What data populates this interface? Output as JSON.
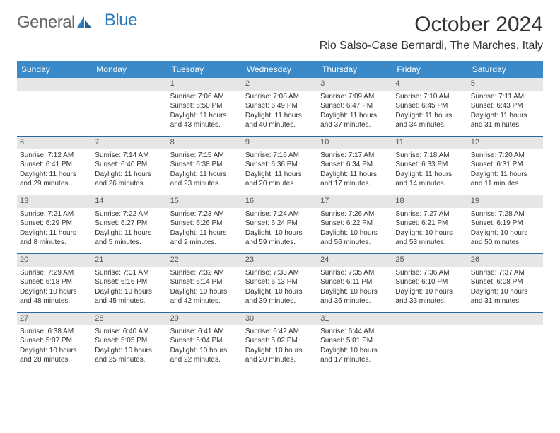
{
  "brand": {
    "part1": "General",
    "part2": "Blue"
  },
  "title": "October 2024",
  "location": "Rio Salso-Case Bernardi, The Marches, Italy",
  "day_names": [
    "Sunday",
    "Monday",
    "Tuesday",
    "Wednesday",
    "Thursday",
    "Friday",
    "Saturday"
  ],
  "colors": {
    "header_bg": "#3a8ac9",
    "header_text": "#ffffff",
    "daynum_bg": "#e6e6e6",
    "rule": "#2a6aa0",
    "brand_blue": "#2a7ac0",
    "text": "#333333"
  },
  "weeks": [
    [
      {
        "n": "",
        "empty": true
      },
      {
        "n": "",
        "empty": true
      },
      {
        "n": "1",
        "sr": "Sunrise: 7:06 AM",
        "ss": "Sunset: 6:50 PM",
        "dl1": "Daylight: 11 hours",
        "dl2": "and 43 minutes."
      },
      {
        "n": "2",
        "sr": "Sunrise: 7:08 AM",
        "ss": "Sunset: 6:49 PM",
        "dl1": "Daylight: 11 hours",
        "dl2": "and 40 minutes."
      },
      {
        "n": "3",
        "sr": "Sunrise: 7:09 AM",
        "ss": "Sunset: 6:47 PM",
        "dl1": "Daylight: 11 hours",
        "dl2": "and 37 minutes."
      },
      {
        "n": "4",
        "sr": "Sunrise: 7:10 AM",
        "ss": "Sunset: 6:45 PM",
        "dl1": "Daylight: 11 hours",
        "dl2": "and 34 minutes."
      },
      {
        "n": "5",
        "sr": "Sunrise: 7:11 AM",
        "ss": "Sunset: 6:43 PM",
        "dl1": "Daylight: 11 hours",
        "dl2": "and 31 minutes."
      }
    ],
    [
      {
        "n": "6",
        "sr": "Sunrise: 7:12 AM",
        "ss": "Sunset: 6:41 PM",
        "dl1": "Daylight: 11 hours",
        "dl2": "and 29 minutes."
      },
      {
        "n": "7",
        "sr": "Sunrise: 7:14 AM",
        "ss": "Sunset: 6:40 PM",
        "dl1": "Daylight: 11 hours",
        "dl2": "and 26 minutes."
      },
      {
        "n": "8",
        "sr": "Sunrise: 7:15 AM",
        "ss": "Sunset: 6:38 PM",
        "dl1": "Daylight: 11 hours",
        "dl2": "and 23 minutes."
      },
      {
        "n": "9",
        "sr": "Sunrise: 7:16 AM",
        "ss": "Sunset: 6:36 PM",
        "dl1": "Daylight: 11 hours",
        "dl2": "and 20 minutes."
      },
      {
        "n": "10",
        "sr": "Sunrise: 7:17 AM",
        "ss": "Sunset: 6:34 PM",
        "dl1": "Daylight: 11 hours",
        "dl2": "and 17 minutes."
      },
      {
        "n": "11",
        "sr": "Sunrise: 7:18 AM",
        "ss": "Sunset: 6:33 PM",
        "dl1": "Daylight: 11 hours",
        "dl2": "and 14 minutes."
      },
      {
        "n": "12",
        "sr": "Sunrise: 7:20 AM",
        "ss": "Sunset: 6:31 PM",
        "dl1": "Daylight: 11 hours",
        "dl2": "and 11 minutes."
      }
    ],
    [
      {
        "n": "13",
        "sr": "Sunrise: 7:21 AM",
        "ss": "Sunset: 6:29 PM",
        "dl1": "Daylight: 11 hours",
        "dl2": "and 8 minutes."
      },
      {
        "n": "14",
        "sr": "Sunrise: 7:22 AM",
        "ss": "Sunset: 6:27 PM",
        "dl1": "Daylight: 11 hours",
        "dl2": "and 5 minutes."
      },
      {
        "n": "15",
        "sr": "Sunrise: 7:23 AM",
        "ss": "Sunset: 6:26 PM",
        "dl1": "Daylight: 11 hours",
        "dl2": "and 2 minutes."
      },
      {
        "n": "16",
        "sr": "Sunrise: 7:24 AM",
        "ss": "Sunset: 6:24 PM",
        "dl1": "Daylight: 10 hours",
        "dl2": "and 59 minutes."
      },
      {
        "n": "17",
        "sr": "Sunrise: 7:26 AM",
        "ss": "Sunset: 6:22 PM",
        "dl1": "Daylight: 10 hours",
        "dl2": "and 56 minutes."
      },
      {
        "n": "18",
        "sr": "Sunrise: 7:27 AM",
        "ss": "Sunset: 6:21 PM",
        "dl1": "Daylight: 10 hours",
        "dl2": "and 53 minutes."
      },
      {
        "n": "19",
        "sr": "Sunrise: 7:28 AM",
        "ss": "Sunset: 6:19 PM",
        "dl1": "Daylight: 10 hours",
        "dl2": "and 50 minutes."
      }
    ],
    [
      {
        "n": "20",
        "sr": "Sunrise: 7:29 AM",
        "ss": "Sunset: 6:18 PM",
        "dl1": "Daylight: 10 hours",
        "dl2": "and 48 minutes."
      },
      {
        "n": "21",
        "sr": "Sunrise: 7:31 AM",
        "ss": "Sunset: 6:16 PM",
        "dl1": "Daylight: 10 hours",
        "dl2": "and 45 minutes."
      },
      {
        "n": "22",
        "sr": "Sunrise: 7:32 AM",
        "ss": "Sunset: 6:14 PM",
        "dl1": "Daylight: 10 hours",
        "dl2": "and 42 minutes."
      },
      {
        "n": "23",
        "sr": "Sunrise: 7:33 AM",
        "ss": "Sunset: 6:13 PM",
        "dl1": "Daylight: 10 hours",
        "dl2": "and 39 minutes."
      },
      {
        "n": "24",
        "sr": "Sunrise: 7:35 AM",
        "ss": "Sunset: 6:11 PM",
        "dl1": "Daylight: 10 hours",
        "dl2": "and 36 minutes."
      },
      {
        "n": "25",
        "sr": "Sunrise: 7:36 AM",
        "ss": "Sunset: 6:10 PM",
        "dl1": "Daylight: 10 hours",
        "dl2": "and 33 minutes."
      },
      {
        "n": "26",
        "sr": "Sunrise: 7:37 AM",
        "ss": "Sunset: 6:08 PM",
        "dl1": "Daylight: 10 hours",
        "dl2": "and 31 minutes."
      }
    ],
    [
      {
        "n": "27",
        "sr": "Sunrise: 6:38 AM",
        "ss": "Sunset: 5:07 PM",
        "dl1": "Daylight: 10 hours",
        "dl2": "and 28 minutes."
      },
      {
        "n": "28",
        "sr": "Sunrise: 6:40 AM",
        "ss": "Sunset: 5:05 PM",
        "dl1": "Daylight: 10 hours",
        "dl2": "and 25 minutes."
      },
      {
        "n": "29",
        "sr": "Sunrise: 6:41 AM",
        "ss": "Sunset: 5:04 PM",
        "dl1": "Daylight: 10 hours",
        "dl2": "and 22 minutes."
      },
      {
        "n": "30",
        "sr": "Sunrise: 6:42 AM",
        "ss": "Sunset: 5:02 PM",
        "dl1": "Daylight: 10 hours",
        "dl2": "and 20 minutes."
      },
      {
        "n": "31",
        "sr": "Sunrise: 6:44 AM",
        "ss": "Sunset: 5:01 PM",
        "dl1": "Daylight: 10 hours",
        "dl2": "and 17 minutes."
      },
      {
        "n": "",
        "empty": true
      },
      {
        "n": "",
        "empty": true
      }
    ]
  ]
}
